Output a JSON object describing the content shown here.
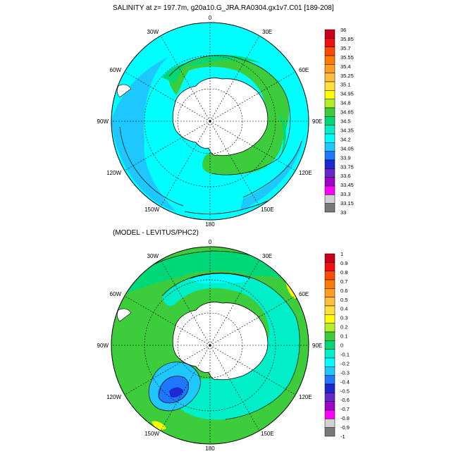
{
  "top_panel": {
    "title": "SALINITY at z= 197.7m, g20a10.G_JRA.RA0304.gx1v7.C01 [189-208]",
    "lon_labels": [
      "0",
      "30E",
      "60E",
      "90E",
      "120E",
      "150E",
      "180",
      "150W",
      "120W",
      "90W",
      "60W",
      "30W"
    ],
    "colorbar": {
      "labels": [
        "36",
        "35.85",
        "35.7",
        "35.55",
        "35.4",
        "35.25",
        "35.1",
        "34.95",
        "34.8",
        "34.65",
        "34.5",
        "34.35",
        "34.2",
        "34.05",
        "33.9",
        "33.75",
        "33.6",
        "33.45",
        "33.3",
        "33.15",
        "33"
      ],
      "colors": [
        "#c8001e",
        "#ee1111",
        "#ff4a00",
        "#ff7a00",
        "#ff9e1e",
        "#ffbe3c",
        "#ffe03c",
        "#ffff00",
        "#b4ee28",
        "#3ccc3c",
        "#00d878",
        "#00eec8",
        "#00ffff",
        "#1ec8ff",
        "#1e78ff",
        "#1e28d2",
        "#6428c8",
        "#a000c8",
        "#ff00ff",
        "#d2d2d2",
        "#787878"
      ]
    }
  },
  "bottom_panel": {
    "title": "(MODEL - LEVITUS/PHC2)",
    "lon_labels": [
      "0",
      "30E",
      "60E",
      "90E",
      "120E",
      "150E",
      "180",
      "150W",
      "120W",
      "90W",
      "60W",
      "30W"
    ],
    "colorbar": {
      "labels": [
        "1",
        "0.9",
        "0.8",
        "0.7",
        "0.6",
        "0.5",
        "0.4",
        "0.3",
        "0.2",
        "0.1",
        "0",
        "-0.1",
        "-0.2",
        "-0.3",
        "-0.4",
        "-0.5",
        "-0.6",
        "-0.7",
        "-0.8",
        "-0.9",
        "-1"
      ],
      "colors": [
        "#c8001e",
        "#ee1111",
        "#ff4a00",
        "#ff7a00",
        "#ff9e1e",
        "#ffbe3c",
        "#ffe03c",
        "#ffff00",
        "#b4ee28",
        "#3ccc3c",
        "#00d878",
        "#00eec8",
        "#00ffff",
        "#1ec8ff",
        "#1e78ff",
        "#1e28d2",
        "#6428c8",
        "#a000c8",
        "#ff00ff",
        "#d2d2d2",
        "#787878"
      ]
    }
  },
  "palette": {
    "ocean_fresh": "#1ec8ff",
    "ocean_mid": "#00eec8",
    "ocean_cyan": "#00ffff",
    "ocean_green": "#3ccc3c",
    "ocean_lime": "#00d878",
    "positive_yellow": "#ffff00",
    "negative_blue": "#1e78ff",
    "deep_blue": "#1e28d2",
    "land": "#ffffff"
  }
}
